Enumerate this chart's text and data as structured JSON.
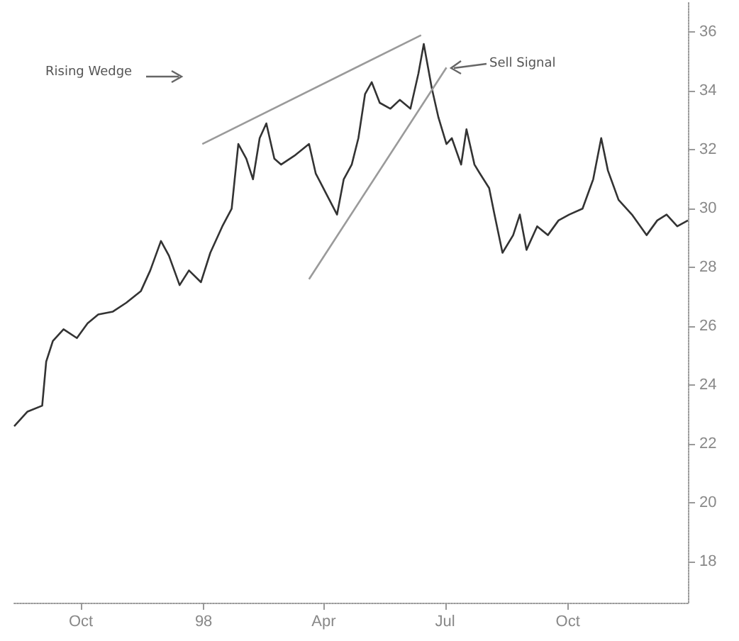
{
  "chart_data": {
    "type": "line",
    "annotations": [
      "Rising Wedge",
      "Sell Signal"
    ],
    "xlim": [
      "1997-08-12",
      "1998-12-30"
    ],
    "xticks": [
      {
        "value": "1997-10-01",
        "label": "Oct"
      },
      {
        "value": "1998-01-01",
        "label": "98"
      },
      {
        "value": "1998-04-01",
        "label": "Apr"
      },
      {
        "value": "1998-07-01",
        "label": "Jul"
      },
      {
        "value": "1998-10-01",
        "label": "Oct"
      }
    ],
    "ylim": [
      16.6,
      37
    ],
    "yticks": [
      18,
      20,
      22,
      24,
      26,
      28,
      30,
      32,
      34,
      36
    ],
    "series": [
      {
        "color": "#333333",
        "x": [
          "1997-08-12",
          "1997-08-22",
          "1997-09-02",
          "1997-09-05",
          "1997-09-10",
          "1997-09-18",
          "1997-09-28",
          "1997-10-06",
          "1997-10-14",
          "1997-10-25",
          "1997-11-04",
          "1997-11-15",
          "1997-11-22",
          "1997-11-30",
          "1997-12-06",
          "1997-12-14",
          "1997-12-21",
          "1997-12-30",
          "1998-01-06",
          "1998-01-15",
          "1998-01-22",
          "1998-01-27",
          "1998-02-02",
          "1998-02-07",
          "1998-02-12",
          "1998-02-17",
          "1998-02-23",
          "1998-02-28",
          "1998-03-10",
          "1998-03-21",
          "1998-03-26",
          "1998-04-03",
          "1998-04-11",
          "1998-04-16",
          "1998-04-22",
          "1998-04-27",
          "1998-05-02",
          "1998-05-07",
          "1998-05-13",
          "1998-05-21",
          "1998-05-28",
          "1998-06-05",
          "1998-06-11",
          "1998-06-15",
          "1998-06-21",
          "1998-06-26",
          "1998-07-02",
          "1998-07-06",
          "1998-07-13",
          "1998-07-17",
          "1998-07-23",
          "1998-07-27",
          "1998-08-03",
          "1998-08-07",
          "1998-08-13",
          "1998-08-21",
          "1998-08-26",
          "1998-08-31",
          "1998-09-08",
          "1998-09-16",
          "1998-09-24",
          "1998-10-02",
          "1998-10-12",
          "1998-10-20",
          "1998-10-26",
          "1998-10-31",
          "1998-11-08",
          "1998-11-18",
          "1998-11-29",
          "1998-12-07",
          "1998-12-14",
          "1998-12-22",
          "1998-12-30"
        ],
        "values": [
          22.6,
          23.1,
          23.3,
          24.8,
          25.5,
          25.9,
          25.6,
          26.1,
          26.4,
          26.5,
          26.8,
          27.2,
          27.9,
          28.9,
          28.4,
          27.4,
          27.9,
          27.5,
          28.5,
          29.4,
          30.0,
          32.2,
          31.7,
          31.0,
          32.4,
          32.9,
          31.7,
          31.5,
          31.8,
          32.2,
          31.2,
          30.5,
          29.8,
          31.0,
          31.5,
          32.4,
          33.9,
          34.3,
          33.6,
          33.4,
          33.7,
          33.4,
          34.6,
          35.6,
          34.1,
          33.1,
          32.2,
          32.4,
          31.5,
          32.7,
          31.5,
          31.2,
          30.7,
          29.8,
          28.5,
          29.1,
          29.8,
          28.6,
          29.4,
          29.1,
          29.6,
          29.8,
          30.0,
          31.0,
          32.4,
          31.3,
          30.3,
          29.8,
          29.1,
          29.6,
          29.8,
          29.4,
          29.6
        ]
      },
      {
        "color": "#9a9a9a",
        "x": [
          "1997-12-31",
          "1998-06-13"
        ],
        "values": [
          32.2,
          35.9
        ]
      },
      {
        "color": "#9a9a9a",
        "x": [
          "1998-03-21",
          "1998-07-02"
        ],
        "values": [
          27.6,
          34.8
        ]
      }
    ]
  }
}
